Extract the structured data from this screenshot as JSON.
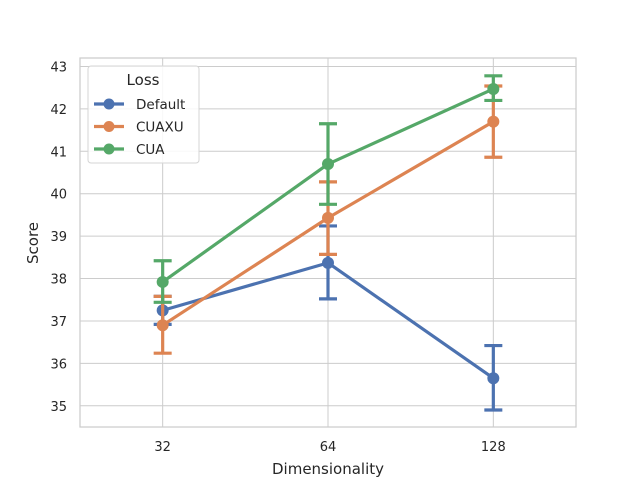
{
  "chart_data": {
    "type": "line",
    "categories": [
      "32",
      "64",
      "128"
    ],
    "xlabel": "Dimensionality",
    "ylabel": "Score",
    "ylim": [
      34.5,
      43.2
    ],
    "yticks": [
      35,
      36,
      37,
      38,
      39,
      40,
      41,
      42,
      43
    ],
    "grid": true,
    "legend": {
      "title": "Loss",
      "placement": "top-left"
    },
    "series": [
      {
        "name": "Default",
        "color": "#4c72b0",
        "values": [
          37.25,
          38.37,
          35.65
        ],
        "err_low": [
          36.92,
          37.52,
          34.9
        ],
        "err_high": [
          37.58,
          39.24,
          36.42
        ]
      },
      {
        "name": "CUAXU",
        "color": "#dd8452",
        "values": [
          36.9,
          39.43,
          41.7
        ],
        "err_low": [
          36.24,
          38.57,
          40.86
        ],
        "err_high": [
          37.58,
          40.28,
          42.54
        ]
      },
      {
        "name": "CUA",
        "color": "#55a868",
        "values": [
          37.92,
          40.7,
          42.47
        ],
        "err_low": [
          37.44,
          39.75,
          42.2
        ],
        "err_high": [
          38.42,
          41.65,
          42.78
        ]
      }
    ]
  }
}
